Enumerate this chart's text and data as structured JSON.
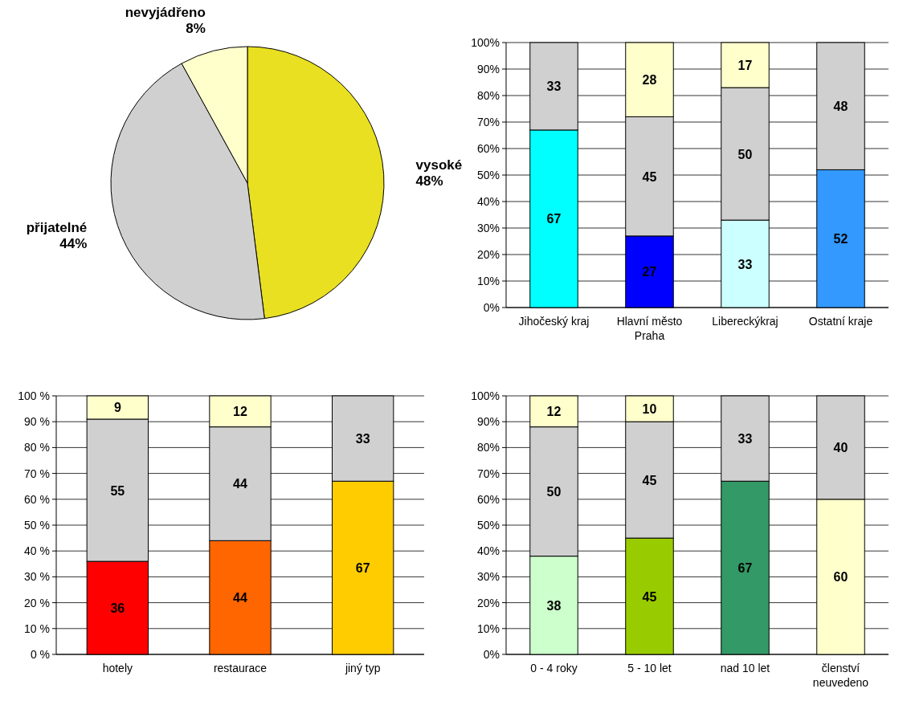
{
  "chart_data": [
    {
      "type": "pie",
      "categories": [
        "vysoké",
        "přijatelné",
        "nevyjádřeno"
      ],
      "values": [
        48,
        44,
        8
      ],
      "colors": [
        "#e8e020",
        "#d0d0d0",
        "#ffffcc"
      ],
      "value_labels": [
        "48%",
        "44%",
        "8%"
      ]
    },
    {
      "type": "bar",
      "stacked": true,
      "data_labels": true,
      "grid": "y",
      "categories": [
        "Jihočeský kraj",
        "Hlavní město Praha",
        "Libereckýkraj",
        "Ostatní kraje"
      ],
      "ylim": [
        0,
        100
      ],
      "yticks": [
        {
          "value": 0,
          "label": "0%"
        },
        {
          "value": 10,
          "label": "10%"
        },
        {
          "value": 20,
          "label": "20%"
        },
        {
          "value": 30,
          "label": "30%"
        },
        {
          "value": 40,
          "label": "40%"
        },
        {
          "value": 50,
          "label": "50%"
        },
        {
          "value": 60,
          "label": "60%"
        },
        {
          "value": 70,
          "label": "70%"
        },
        {
          "value": 80,
          "label": "80%"
        },
        {
          "value": 90,
          "label": "90%"
        },
        {
          "value": 100,
          "label": "100%"
        }
      ],
      "series": [
        {
          "colors": [
            "#00ffff",
            "#0000ff",
            "#ccffff",
            "#3399ff"
          ],
          "values": [
            67,
            27,
            33,
            52
          ]
        },
        {
          "color": "#d0d0d0",
          "values": [
            33,
            45,
            50,
            48
          ]
        },
        {
          "color": "#ffffcc",
          "values": [
            null,
            28,
            17,
            null
          ]
        }
      ]
    },
    {
      "type": "bar",
      "stacked": true,
      "data_labels": true,
      "grid": "y",
      "categories": [
        "hotely",
        "restaurace",
        "jiný typ"
      ],
      "ylim": [
        0,
        100
      ],
      "yticks": [
        {
          "value": 0,
          "label": "0 %"
        },
        {
          "value": 10,
          "label": "10 %"
        },
        {
          "value": 20,
          "label": "20 %"
        },
        {
          "value": 30,
          "label": "30 %"
        },
        {
          "value": 40,
          "label": "40 %"
        },
        {
          "value": 50,
          "label": "50 %"
        },
        {
          "value": 60,
          "label": "60 %"
        },
        {
          "value": 70,
          "label": "70 %"
        },
        {
          "value": 80,
          "label": "80 %"
        },
        {
          "value": 90,
          "label": "90 %"
        },
        {
          "value": 100,
          "label": "100 %"
        }
      ],
      "series": [
        {
          "colors": [
            "#ff0000",
            "#ff6600",
            "#ffcc00"
          ],
          "values": [
            36,
            44,
            67
          ]
        },
        {
          "color": "#d0d0d0",
          "values": [
            55,
            44,
            33
          ]
        },
        {
          "color": "#ffffcc",
          "values": [
            9,
            12,
            null
          ]
        }
      ]
    },
    {
      "type": "bar",
      "stacked": true,
      "data_labels": true,
      "grid": "y",
      "categories": [
        "0 - 4 roky",
        "5 - 10 let",
        "nad 10 let",
        "členství neuvedeno"
      ],
      "ylim": [
        0,
        100
      ],
      "yticks": [
        {
          "value": 0,
          "label": "0%"
        },
        {
          "value": 10,
          "label": "10%"
        },
        {
          "value": 20,
          "label": "20%"
        },
        {
          "value": 30,
          "label": "30%"
        },
        {
          "value": 40,
          "label": "40%"
        },
        {
          "value": 50,
          "label": "50%"
        },
        {
          "value": 60,
          "label": "60%"
        },
        {
          "value": 70,
          "label": "70%"
        },
        {
          "value": 80,
          "label": "80%"
        },
        {
          "value": 90,
          "label": "90%"
        },
        {
          "value": 100,
          "label": "100%"
        }
      ],
      "series": [
        {
          "colors": [
            "#ccffcc",
            "#99cc00",
            "#339966",
            "#ffffcc"
          ],
          "values": [
            38,
            45,
            67,
            60
          ]
        },
        {
          "color": "#d0d0d0",
          "values": [
            50,
            45,
            33,
            40
          ]
        },
        {
          "color": "#ffffcc",
          "values": [
            12,
            10,
            null,
            null
          ]
        }
      ]
    }
  ]
}
